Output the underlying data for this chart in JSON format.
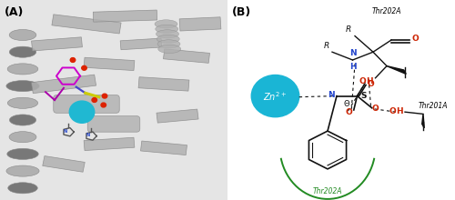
{
  "panel_A_label": "(A)",
  "panel_B_label": "(B)",
  "bg_color": "#f0f0f0",
  "zn_circle_color": "#1ab5d5",
  "red_color": "#cc2200",
  "blue_color": "#2244cc",
  "green_color": "#228B22",
  "black_color": "#111111",
  "thr202A_top": "Thr202A",
  "thr201A": "Thr201A",
  "thr202A_bottom": "Thr202A",
  "zn_label": "Zn$^{2+}$",
  "theta_label": "Θ"
}
